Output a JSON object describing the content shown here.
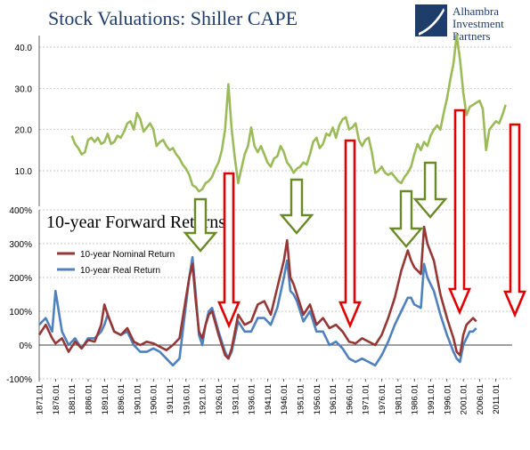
{
  "chart_data": [
    {
      "type": "line",
      "title": "Stock Valuations: Shiller CAPE",
      "ylim": [
        0,
        45
      ],
      "y_ticks": [
        "10.0",
        "20.0",
        "30.0",
        "40.0"
      ],
      "grid": true,
      "series": [
        {
          "color": "#9bbb59",
          "x": [
            1881,
            1882,
            1883,
            1884,
            1885,
            1886,
            1887,
            1888,
            1889,
            1890,
            1891,
            1892,
            1893,
            1894,
            1895,
            1896,
            1897,
            1898,
            1899,
            1900,
            1901,
            1902,
            1903,
            1904,
            1905,
            1906,
            1907,
            1908,
            1909,
            1910,
            1911,
            1912,
            1913,
            1914,
            1915,
            1916,
            1917,
            1918,
            1919,
            1920,
            1921,
            1922,
            1923,
            1924,
            1925,
            1926,
            1927,
            1928,
            1929,
            1930,
            1931,
            1932,
            1933,
            1934,
            1935,
            1936,
            1937,
            1938,
            1939,
            1940,
            1941,
            1942,
            1943,
            1944,
            1945,
            1946,
            1947,
            1948,
            1949,
            1950,
            1951,
            1952,
            1953,
            1954,
            1955,
            1956,
            1957,
            1958,
            1959,
            1960,
            1961,
            1962,
            1963,
            1964,
            1965,
            1966,
            1967,
            1968,
            1969,
            1970,
            1971,
            1972,
            1973,
            1974,
            1975,
            1976,
            1977,
            1978,
            1979,
            1980,
            1981,
            1982,
            1983,
            1984,
            1985,
            1986,
            1987,
            1988,
            1989,
            1990,
            1991,
            1992,
            1993,
            1994,
            1995,
            1996,
            1997,
            1998,
            1999,
            2000,
            2001,
            2002,
            2003,
            2004,
            2005,
            2006,
            2007,
            2008,
            2009,
            2010,
            2011,
            2012,
            2013,
            2014
          ],
          "values": [
            18.5,
            16.5,
            15.5,
            14.0,
            14.5,
            17.5,
            18.0,
            17.0,
            18.0,
            16.5,
            17.0,
            19.0,
            16.5,
            17.0,
            18.5,
            18.0,
            19.5,
            21.5,
            22.0,
            20.0,
            24.0,
            22.5,
            19.5,
            20.5,
            21.5,
            20.0,
            16.0,
            17.0,
            17.5,
            16.0,
            15.0,
            15.5,
            14.0,
            13.0,
            11.5,
            10.5,
            9.0,
            6.5,
            6.0,
            5.0,
            5.5,
            7.0,
            7.5,
            8.5,
            10.5,
            12.0,
            15.0,
            20.0,
            31.0,
            20.0,
            13.0,
            7.0,
            10.5,
            14.0,
            16.0,
            20.5,
            16.0,
            14.5,
            16.0,
            14.0,
            12.0,
            11.0,
            13.0,
            13.5,
            16.0,
            14.5,
            12.0,
            11.0,
            9.5,
            10.5,
            11.0,
            12.0,
            11.5,
            14.0,
            17.0,
            18.0,
            15.5,
            16.5,
            19.0,
            18.5,
            20.5,
            18.0,
            21.0,
            22.5,
            23.0,
            20.0,
            20.5,
            21.5,
            17.5,
            16.0,
            17.5,
            18.0,
            14.5,
            9.5,
            10.0,
            11.0,
            9.5,
            9.0,
            9.5,
            8.5,
            7.5,
            7.0,
            8.5,
            9.5,
            11.0,
            14.0,
            16.5,
            15.0,
            17.0,
            16.0,
            18.5,
            20.0,
            21.0,
            20.0,
            24.0,
            27.5,
            32.0,
            36.0,
            43.0,
            37.0,
            29.0,
            23.5,
            25.5,
            26.0,
            26.5,
            27.0,
            25.0,
            15.0,
            20.0,
            21.0,
            22.0,
            21.5,
            23.5,
            26.0
          ]
        }
      ]
    },
    {
      "type": "line",
      "title": "10-year Forward Returns",
      "x_ticks": [
        "1871.01",
        "1876.01",
        "1881.01",
        "1886.01",
        "1891.01",
        "1896.01",
        "1901.01",
        "1906.01",
        "1911.01",
        "1916.01",
        "1921.01",
        "1926.01",
        "1931.01",
        "1936.01",
        "1941.01",
        "1946.01",
        "1951.01",
        "1956.01",
        "1961.01",
        "1966.01",
        "1971.01",
        "1976.01",
        "1981.01",
        "1986.01",
        "1991.01",
        "1996.01",
        "2001.01",
        "2006.01",
        "2011.01"
      ],
      "y_ticks": [
        "-100%",
        "0%",
        "100%",
        "200%",
        "300%",
        "400%"
      ],
      "ylim": [
        -100,
        400
      ],
      "grid": true,
      "legend_position": "top-left",
      "series": [
        {
          "name": "10-year Nominal Return",
          "color": "#953735",
          "x": [
            1871,
            1873,
            1875,
            1876,
            1878,
            1880,
            1882,
            1884,
            1886,
            1888,
            1890,
            1891,
            1892,
            1894,
            1896,
            1898,
            1900,
            1902,
            1904,
            1906,
            1908,
            1910,
            1912,
            1914,
            1916,
            1917,
            1918,
            1919,
            1920,
            1921,
            1922,
            1923,
            1924,
            1926,
            1928,
            1929,
            1930,
            1932,
            1934,
            1936,
            1938,
            1940,
            1942,
            1944,
            1946,
            1947,
            1948,
            1949,
            1950,
            1952,
            1954,
            1956,
            1958,
            1960,
            1962,
            1964,
            1966,
            1968,
            1970,
            1972,
            1974,
            1976,
            1978,
            1980,
            1982,
            1984,
            1985,
            1986,
            1988,
            1989,
            1990,
            1992,
            1994,
            1996,
            1998,
            1999,
            2000,
            2001,
            2002,
            2003,
            2004,
            2005
          ],
          "values": [
            30,
            60,
            20,
            5,
            20,
            -20,
            10,
            -10,
            15,
            10,
            60,
            120,
            90,
            40,
            30,
            50,
            10,
            0,
            10,
            5,
            -5,
            -15,
            0,
            20,
            140,
            200,
            240,
            130,
            40,
            20,
            60,
            90,
            100,
            30,
            -30,
            -40,
            -10,
            90,
            60,
            70,
            120,
            130,
            90,
            170,
            250,
            310,
            200,
            180,
            150,
            90,
            120,
            60,
            80,
            50,
            60,
            40,
            10,
            5,
            20,
            10,
            0,
            30,
            80,
            140,
            220,
            280,
            250,
            230,
            210,
            350,
            300,
            250,
            150,
            80,
            20,
            -20,
            -30,
            30,
            60,
            70,
            80,
            70
          ]
        },
        {
          "name": "10-year Real Return",
          "color": "#4f81bd",
          "x": [
            1871,
            1873,
            1875,
            1876,
            1878,
            1880,
            1882,
            1884,
            1886,
            1888,
            1890,
            1891,
            1892,
            1894,
            1896,
            1898,
            1900,
            1902,
            1904,
            1906,
            1908,
            1910,
            1912,
            1914,
            1916,
            1917,
            1918,
            1919,
            1920,
            1921,
            1922,
            1923,
            1924,
            1926,
            1928,
            1929,
            1930,
            1932,
            1934,
            1936,
            1938,
            1940,
            1942,
            1944,
            1946,
            1947,
            1948,
            1949,
            1950,
            1952,
            1954,
            1956,
            1958,
            1960,
            1962,
            1964,
            1966,
            1968,
            1970,
            1972,
            1974,
            1976,
            1978,
            1980,
            1982,
            1984,
            1985,
            1986,
            1988,
            1989,
            1990,
            1992,
            1994,
            1996,
            1998,
            1999,
            2000,
            2001,
            2002,
            2003,
            2004,
            2005
          ],
          "values": [
            60,
            80,
            40,
            160,
            40,
            0,
            20,
            -10,
            20,
            20,
            40,
            60,
            90,
            40,
            30,
            40,
            0,
            -20,
            -20,
            -10,
            -20,
            -40,
            -60,
            -40,
            120,
            200,
            260,
            150,
            30,
            0,
            60,
            100,
            110,
            40,
            -20,
            -40,
            -20,
            70,
            40,
            40,
            80,
            80,
            60,
            110,
            200,
            250,
            160,
            150,
            130,
            70,
            100,
            40,
            40,
            0,
            10,
            -10,
            -40,
            -50,
            -40,
            -50,
            -60,
            -30,
            10,
            60,
            100,
            140,
            140,
            120,
            110,
            240,
            200,
            160,
            90,
            30,
            -20,
            -40,
            -50,
            0,
            20,
            40,
            40,
            50
          ]
        }
      ]
    }
  ],
  "logo": {
    "line1": "Alhambra",
    "line2": "Investment",
    "line3": "Partners"
  },
  "colors": {
    "cape": "#9bbb59",
    "nominal": "#953735",
    "real": "#4f81bd",
    "arrow_red": "#e00000",
    "arrow_green": "#6a8a28",
    "title": "#1f3d6b",
    "grid": "#b8b8b8"
  }
}
